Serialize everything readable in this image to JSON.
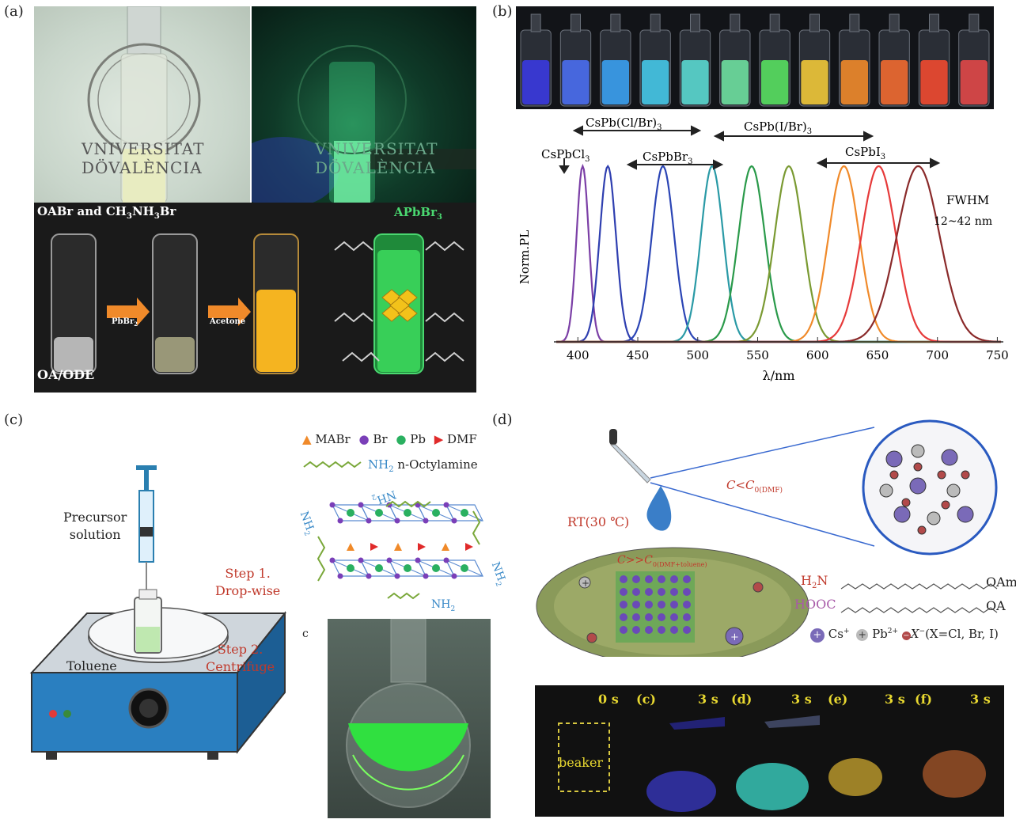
{
  "panels": {
    "a": "(a)",
    "b": "(b)",
    "c": "(c)",
    "d": "(d)"
  },
  "panel_a": {
    "logo_text_1": "VNIVERSITAT",
    "logo_text_2": "DÖVALÈNCIA",
    "label_top": "OABr and CH3NH3Br",
    "label_top_main": "OABr and CH",
    "label_top_sub1": "3",
    "label_top_mid": "NH",
    "label_top_sub2": "3",
    "label_top_end": "Br",
    "arrow1": "PbBr2",
    "arrow1_main": "PbBr",
    "arrow1_sub": "2",
    "arrow2": "Acetone",
    "product_main": "APbBr",
    "product_sub": "3",
    "solvent": "OA/ODE"
  },
  "chart_data": {
    "type": "line",
    "xlabel": "λ/nm",
    "ylabel": "Norm.PL",
    "xlim": [
      380,
      755
    ],
    "xticks": [
      400,
      450,
      500,
      550,
      600,
      650,
      700,
      750
    ],
    "series": [
      {
        "peak": 404,
        "fwhm": 12,
        "color": "#7b3fa6"
      },
      {
        "peak": 425,
        "fwhm": 16,
        "color": "#2f3fb0"
      },
      {
        "peak": 471,
        "fwhm": 22,
        "color": "#2b45b5"
      },
      {
        "peak": 512,
        "fwhm": 22,
        "color": "#2a9aa6"
      },
      {
        "peak": 545,
        "fwhm": 26,
        "color": "#2a9a4a"
      },
      {
        "peak": 576,
        "fwhm": 28,
        "color": "#7a9a32"
      },
      {
        "peak": 622,
        "fwhm": 30,
        "color": "#f08a2a"
      },
      {
        "peak": 651,
        "fwhm": 34,
        "color": "#e63a3a"
      },
      {
        "peak": 684,
        "fwhm": 42,
        "color": "#8a2a2a"
      }
    ],
    "annotations": {
      "cspbcl3": "CsPbCl3",
      "cspbclbr3": "CsPb(Cl/Br)3",
      "cspbbr3": "CsPbBr3",
      "cspbibr3": "CsPb(I/Br)3",
      "cspbi3": "CsPbI3",
      "fwhm_1": "FWHM",
      "fwhm_2": "12~42 nm"
    }
  },
  "panel_b_vials": [
    "#3a3ae0",
    "#4a6ef0",
    "#3aa0f0",
    "#45c8e8",
    "#5ad8d0",
    "#6ee0a0",
    "#58e060",
    "#f0c838",
    "#f08a2a",
    "#f06a30",
    "#f04a30",
    "#e04848"
  ],
  "panel_c": {
    "precursor_1": "Precursor",
    "precursor_2": "solution",
    "step1_1": "Step 1.",
    "step1_2": "Drop-wise",
    "step2_1": "Step 2.",
    "step2_2": "Centrifuge",
    "toluene": "Toluene",
    "legend_mabr": "MABr",
    "legend_br": "Br",
    "legend_pb": "Pb",
    "legend_dmf": "DMF",
    "legend_nh2": "NH",
    "legend_nh2_sub": "2",
    "legend_octylamine": "n-Octylamine",
    "nh2": "NH",
    "nh2_sub": "2",
    "sub_c": "c"
  },
  "panel_d": {
    "rt": "RT(30 ℃)",
    "c_lt": "C<C",
    "c_lt_sub": "0(DMF)",
    "c_gg": "C>>C",
    "c_gg_sub": "0(DMF+toluene)",
    "h2n": "H",
    "h2n_sub": "2",
    "h2n_end": "N",
    "oam": "OAm",
    "hooc": "HOOC",
    "oa": "OA",
    "cs": "Cs",
    "cs_sup": "+",
    "pb": "Pb",
    "pb_sup": "2+",
    "x": "X",
    "x_sup": "−",
    "x_desc": "(X=Cl, Br, I)",
    "times": [
      "0 s",
      "3 s",
      "3 s",
      "3 s",
      "3 s"
    ],
    "letters": [
      "(c)",
      "(d)",
      "(e)",
      "(f)"
    ],
    "beaker": "beaker"
  }
}
